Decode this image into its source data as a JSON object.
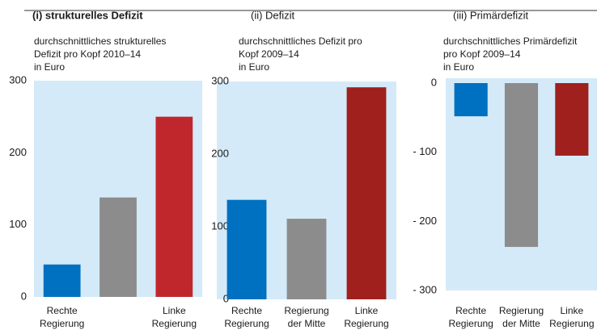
{
  "chart_data": [
    {
      "type": "bar",
      "title": "(i) strukturelles Defizit",
      "subtitle": [
        "durchschnittliches strukturelles",
        "Defizit  pro Kopf 2010–14",
        "in Euro"
      ],
      "categories": [
        "Rechte\nRegierung",
        null,
        "Linke\nRegierung"
      ],
      "values": [
        45,
        138,
        250
      ],
      "colors": [
        "#0070c0",
        "#8c8c8c",
        "#c0272d"
      ],
      "ylim": [
        0,
        300
      ],
      "yticks": [
        0,
        100,
        200,
        300
      ],
      "grid": false
    },
    {
      "type": "bar",
      "title": "(ii) Defizit",
      "subtitle": [
        "durchschnittliches Defizit pro",
        "Kopf 2009–14",
        "in Euro"
      ],
      "categories": [
        "Rechte\nRegierung",
        "Regierung\nder Mitte",
        "Linke\nRegierung"
      ],
      "values": [
        137,
        111,
        292
      ],
      "colors": [
        "#0070c0",
        "#8c8c8c",
        "#a0201e"
      ],
      "ylim": [
        0,
        300
      ],
      "yticks": [
        0,
        100,
        200,
        300
      ],
      "grid": false
    },
    {
      "type": "bar",
      "title": "(iii) Primärdefizit",
      "subtitle": [
        "durchschnittliches Primärdefizit",
        "pro Kopf 2009–14",
        "in Euro"
      ],
      "categories": [
        "Rechte\nRegierung",
        "Regierung\nder Mitte",
        "Linke\nRegierung"
      ],
      "values": [
        -48,
        -237,
        -105
      ],
      "colors": [
        "#0070c0",
        "#8c8c8c",
        "#a0201e"
      ],
      "ylim": [
        -300,
        0
      ],
      "yticks": [
        {
          "value": -300,
          "label": "- 300"
        },
        {
          "value": -200,
          "label": "- 200"
        },
        {
          "value": -100,
          "label": "- 100"
        },
        0
      ],
      "grid": false
    }
  ]
}
